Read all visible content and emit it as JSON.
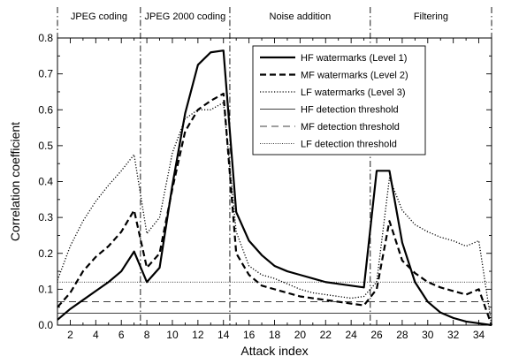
{
  "chart_data": {
    "type": "line",
    "title": "",
    "xlabel": "Attack index",
    "ylabel": "Correlation coefficient",
    "xlim": [
      1,
      35
    ],
    "ylim": [
      0,
      0.8
    ],
    "x_ticks": [
      2,
      4,
      6,
      8,
      10,
      12,
      14,
      16,
      18,
      20,
      22,
      24,
      26,
      28,
      30,
      32,
      34
    ],
    "y_ticks": [
      0.0,
      0.1,
      0.2,
      0.3,
      0.4,
      0.5,
      0.6,
      0.7,
      0.8
    ],
    "y_tick_labels": [
      "0.0",
      "0.1",
      "0.2",
      "0.3",
      "0.4",
      "0.5",
      "0.6",
      "0.7",
      "0.8"
    ],
    "regions": [
      {
        "label": "JPEG coding",
        "from": 1,
        "to": 7.5
      },
      {
        "label": "JPEG 2000 coding",
        "from": 7.5,
        "to": 14.5
      },
      {
        "label": "Noise addition",
        "from": 14.5,
        "to": 25.5
      },
      {
        "label": "Filtering",
        "from": 25.5,
        "to": 35
      }
    ],
    "region_boundaries": [
      7.5,
      14.5,
      25.5
    ],
    "legend_position": "top-center",
    "x": [
      1,
      2,
      3,
      4,
      5,
      6,
      7,
      8,
      9,
      10,
      11,
      12,
      13,
      14,
      15,
      16,
      17,
      18,
      19,
      20,
      21,
      22,
      23,
      24,
      25,
      26,
      27,
      28,
      29,
      30,
      31,
      32,
      33,
      34,
      35
    ],
    "series": [
      {
        "name": "HF watermarks (Level 1)",
        "style": "solid-thick",
        "values": [
          0.015,
          0.045,
          0.07,
          0.095,
          0.12,
          0.15,
          0.205,
          0.12,
          0.16,
          0.39,
          0.59,
          0.725,
          0.76,
          0.765,
          0.315,
          0.235,
          0.195,
          0.165,
          0.15,
          0.14,
          0.13,
          0.12,
          0.115,
          0.11,
          0.105,
          0.43,
          0.43,
          0.23,
          0.12,
          0.065,
          0.035,
          0.02,
          0.01,
          0.005,
          0.0
        ]
      },
      {
        "name": "MF watermarks (Level 2)",
        "style": "dashed-thick",
        "values": [
          0.05,
          0.09,
          0.15,
          0.19,
          0.22,
          0.26,
          0.32,
          0.16,
          0.2,
          0.38,
          0.54,
          0.6,
          0.625,
          0.645,
          0.2,
          0.14,
          0.11,
          0.1,
          0.09,
          0.08,
          0.075,
          0.07,
          0.065,
          0.06,
          0.055,
          0.1,
          0.29,
          0.18,
          0.145,
          0.12,
          0.105,
          0.095,
          0.085,
          0.1,
          0.0
        ]
      },
      {
        "name": "LF watermarks (Level 3)",
        "style": "dotted",
        "values": [
          0.125,
          0.22,
          0.29,
          0.345,
          0.39,
          0.43,
          0.475,
          0.255,
          0.3,
          0.48,
          0.575,
          0.6,
          0.6,
          0.62,
          0.26,
          0.165,
          0.14,
          0.13,
          0.115,
          0.1,
          0.09,
          0.085,
          0.08,
          0.075,
          0.08,
          0.12,
          0.41,
          0.32,
          0.28,
          0.26,
          0.245,
          0.235,
          0.22,
          0.235,
          0.0
        ]
      }
    ],
    "thresholds": [
      {
        "name": "HF detection threshold",
        "style": "solid-thin",
        "value": 0.033
      },
      {
        "name": "MF detection threshold",
        "style": "dashed-thin",
        "value": 0.065
      },
      {
        "name": "LF detection threshold",
        "style": "dotted-thin",
        "value": 0.12
      }
    ]
  }
}
